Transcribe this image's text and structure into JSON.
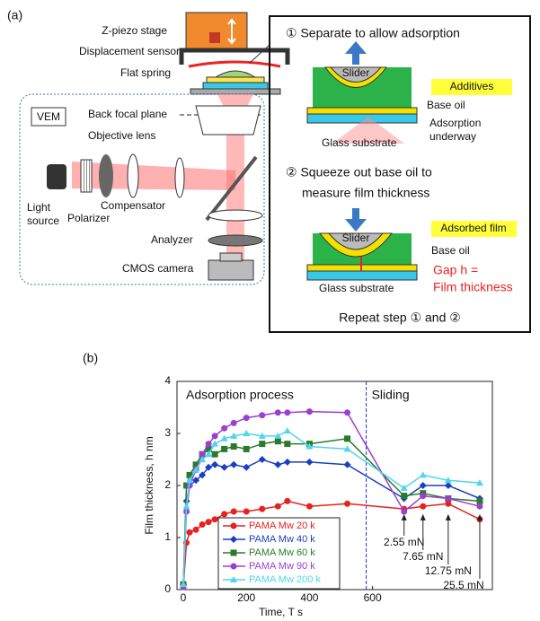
{
  "diagram": {
    "panel_a": "(a)",
    "z_piezo": "Z-piezo stage",
    "sensor": "Displacement sensor",
    "spring": "Flat spring",
    "vem": "VEM",
    "bfp": "Back focal plane",
    "objective": "Objective lens",
    "light_source": [
      "Light",
      "source"
    ],
    "polarizer": "Polarizer",
    "compensator": "Compensator",
    "analyzer": "Analyzer",
    "camera": "CMOS camera",
    "step1": {
      "title": "① Separate to allow adsorption",
      "slider": "Slider",
      "additives": "Additives",
      "base_oil": "Base oil",
      "adsorption": [
        "Adsorption",
        "underway"
      ],
      "glass": "Glass substrate"
    },
    "step2": {
      "title": [
        "② Squeeze out base oil to",
        "measure film thickness"
      ],
      "slider": "Slider",
      "film": "Adsorbed film",
      "base_oil": "Base oil",
      "gap": [
        "Gap h =",
        "Film thickness"
      ],
      "glass": "Glass substrate"
    },
    "repeat": "Repeat step ① and ②"
  },
  "chart_data": {
    "type": "line",
    "panel": "(b)",
    "xlabel": "Time, T s",
    "ylabel": "Film thickness, h nm",
    "annotations": [
      "Adsorption process",
      "Sliding"
    ],
    "loads": [
      {
        "text": "2.55 mN",
        "x": 700
      },
      {
        "text": "7.65 mN",
        "x": 760
      },
      {
        "text": "12.75 mN",
        "x": 840
      },
      {
        "text": "25.5 mN",
        "x": 940
      }
    ],
    "vline_x": 580,
    "vline_color": "#2233cc",
    "xlim": [
      -20,
      980
    ],
    "xticks": [
      0,
      200,
      400,
      600
    ],
    "ylim": [
      0,
      4
    ],
    "yticks": [
      0,
      1,
      2,
      3,
      4
    ],
    "legend": "lower left",
    "x": [
      0,
      10,
      20,
      40,
      60,
      80,
      100,
      130,
      160,
      200,
      250,
      300,
      330,
      400,
      520,
      700,
      760,
      840,
      940
    ],
    "series": [
      {
        "name": "PAMA Mw 20 k",
        "color": "#e8201e",
        "marker": "circle",
        "values": [
          0.05,
          0.9,
          1.1,
          1.15,
          1.25,
          1.3,
          1.35,
          1.45,
          1.5,
          1.5,
          1.55,
          1.6,
          1.7,
          1.6,
          1.65,
          1.55,
          1.6,
          1.65,
          1.35
        ]
      },
      {
        "name": "PAMA Mw 40 k",
        "color": "#1a3fc4",
        "marker": "diamond",
        "values": [
          0.1,
          1.7,
          2.0,
          2.1,
          2.2,
          2.35,
          2.4,
          2.35,
          2.4,
          2.35,
          2.5,
          2.4,
          2.45,
          2.45,
          2.4,
          1.75,
          2.0,
          2.0,
          1.75
        ]
      },
      {
        "name": "PAMA Mw 60 k",
        "color": "#2b7a2b",
        "marker": "square",
        "values": [
          0.1,
          2.0,
          2.2,
          2.4,
          2.6,
          2.7,
          2.6,
          2.7,
          2.75,
          2.7,
          2.8,
          2.85,
          2.8,
          2.8,
          2.9,
          1.8,
          1.85,
          1.75,
          1.7
        ]
      },
      {
        "name": "PAMA Mw 90 k",
        "color": "#9a3fd0",
        "marker": "circle",
        "values": [
          0.05,
          1.5,
          2.0,
          2.3,
          2.6,
          2.8,
          2.95,
          3.1,
          3.2,
          3.3,
          3.35,
          3.4,
          3.4,
          3.42,
          3.4,
          1.5,
          1.8,
          1.75,
          1.6
        ]
      },
      {
        "name": "PAMA Mw 200 k",
        "color": "#4fd5ef",
        "marker": "triangle",
        "values": [
          0.1,
          1.6,
          2.1,
          2.3,
          2.5,
          2.6,
          2.8,
          2.9,
          2.95,
          3.0,
          2.95,
          2.95,
          3.05,
          2.75,
          2.7,
          1.95,
          2.2,
          2.1,
          2.05
        ]
      }
    ]
  }
}
